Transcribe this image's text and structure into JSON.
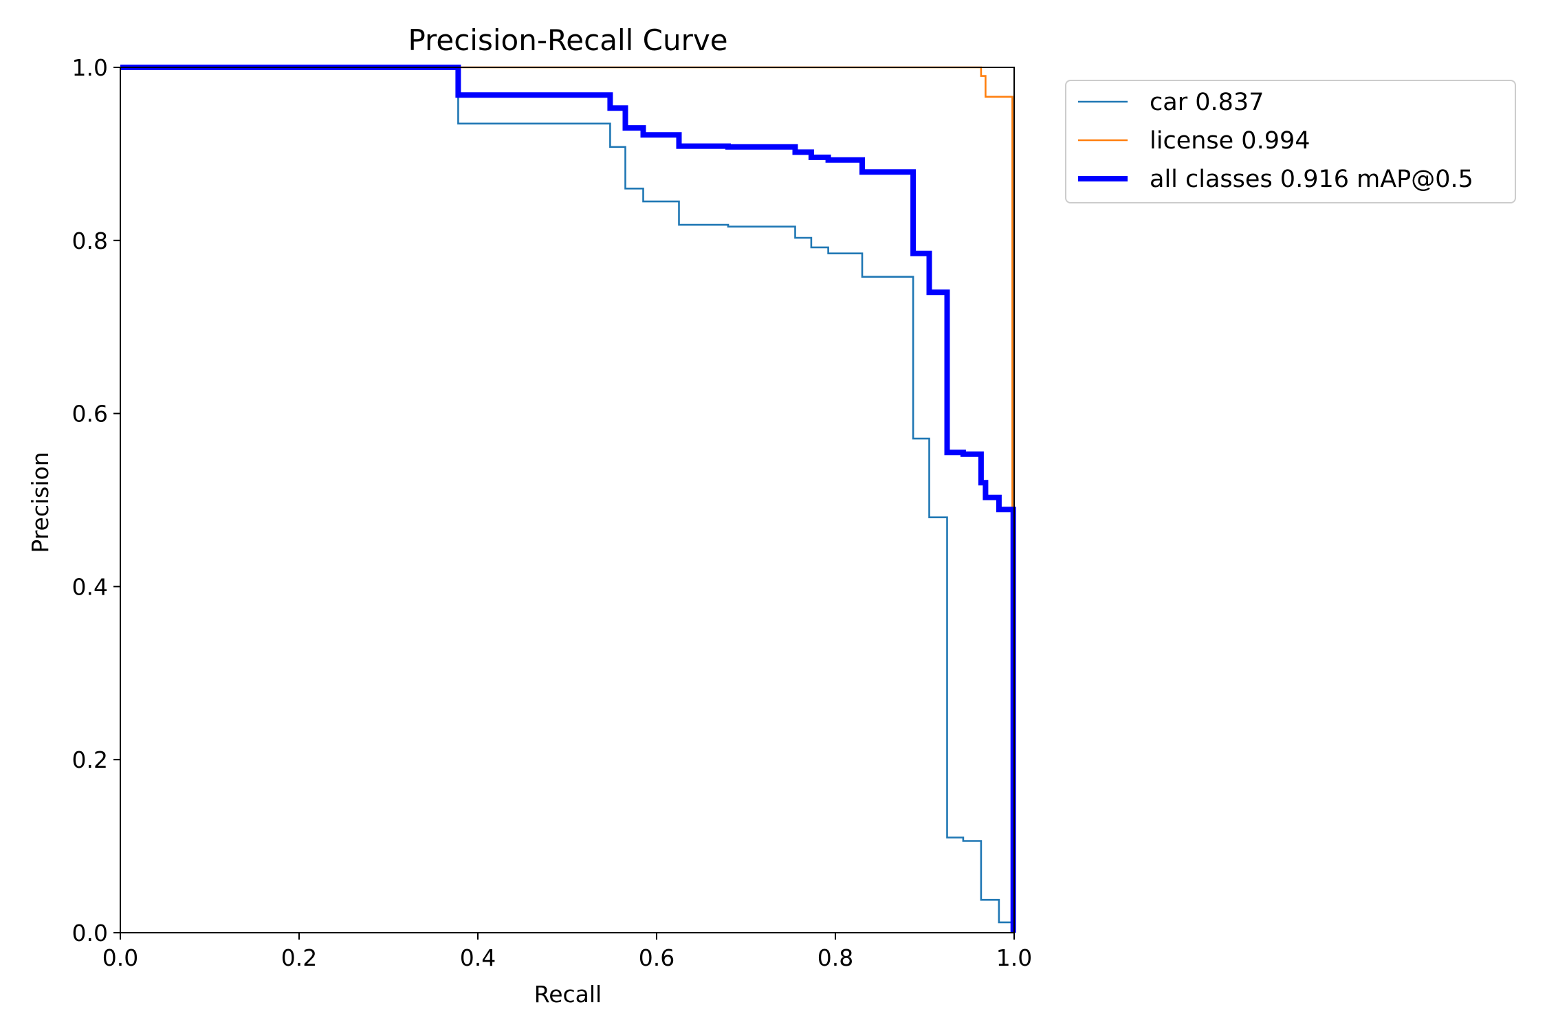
{
  "chart_data": {
    "type": "line",
    "title": "Precision-Recall Curve",
    "xlabel": "Recall",
    "ylabel": "Precision",
    "xlim": [
      0,
      1
    ],
    "ylim": [
      0,
      1
    ],
    "xticks": [
      "0.0",
      "0.2",
      "0.4",
      "0.6",
      "0.8",
      "1.0"
    ],
    "yticks": [
      "0.0",
      "0.2",
      "0.4",
      "0.6",
      "0.8",
      "1.0"
    ],
    "grid": false,
    "legend_position": "outside-upper-right",
    "series": [
      {
        "name": "car 0.837",
        "color": "#1f77b4",
        "line_style": "thin",
        "x": [
          0.0,
          0.378,
          0.378,
          0.548,
          0.548,
          0.565,
          0.565,
          0.585,
          0.585,
          0.625,
          0.625,
          0.68,
          0.68,
          0.755,
          0.755,
          0.773,
          0.773,
          0.792,
          0.792,
          0.83,
          0.83,
          0.887,
          0.887,
          0.905,
          0.905,
          0.925,
          0.925,
          0.943,
          0.943,
          0.963,
          0.963,
          0.983,
          0.983,
          0.998,
          0.998
        ],
        "y": [
          1.0,
          1.0,
          0.935,
          0.935,
          0.908,
          0.908,
          0.86,
          0.86,
          0.845,
          0.845,
          0.818,
          0.818,
          0.816,
          0.816,
          0.803,
          0.803,
          0.792,
          0.792,
          0.785,
          0.785,
          0.758,
          0.758,
          0.571,
          0.571,
          0.48,
          0.48,
          0.11,
          0.11,
          0.106,
          0.106,
          0.038,
          0.038,
          0.012,
          0.012,
          0.0
        ]
      },
      {
        "name": "license 0.994",
        "color": "#ff7f0e",
        "line_style": "thin",
        "x": [
          0.0,
          0.963,
          0.963,
          0.968,
          0.968,
          0.998,
          0.998,
          0.999,
          0.999
        ],
        "y": [
          1.0,
          1.0,
          0.99,
          0.99,
          0.966,
          0.966,
          0.48,
          0.48,
          0.0
        ]
      },
      {
        "name": "all classes 0.916 mAP@0.5",
        "color": "#0000ff",
        "line_style": "thick",
        "x": [
          0.0,
          0.378,
          0.378,
          0.548,
          0.548,
          0.565,
          0.565,
          0.585,
          0.585,
          0.625,
          0.625,
          0.68,
          0.68,
          0.755,
          0.755,
          0.773,
          0.773,
          0.792,
          0.792,
          0.83,
          0.83,
          0.887,
          0.887,
          0.905,
          0.905,
          0.925,
          0.925,
          0.943,
          0.943,
          0.963,
          0.963,
          0.968,
          0.968,
          0.983,
          0.983,
          0.999,
          0.999
        ],
        "y": [
          1.0,
          1.0,
          0.968,
          0.968,
          0.953,
          0.953,
          0.93,
          0.93,
          0.922,
          0.922,
          0.909,
          0.909,
          0.908,
          0.908,
          0.902,
          0.902,
          0.896,
          0.896,
          0.893,
          0.893,
          0.879,
          0.879,
          0.785,
          0.785,
          0.74,
          0.74,
          0.555,
          0.555,
          0.553,
          0.553,
          0.52,
          0.52,
          0.503,
          0.503,
          0.489,
          0.489,
          0.0
        ]
      }
    ]
  }
}
